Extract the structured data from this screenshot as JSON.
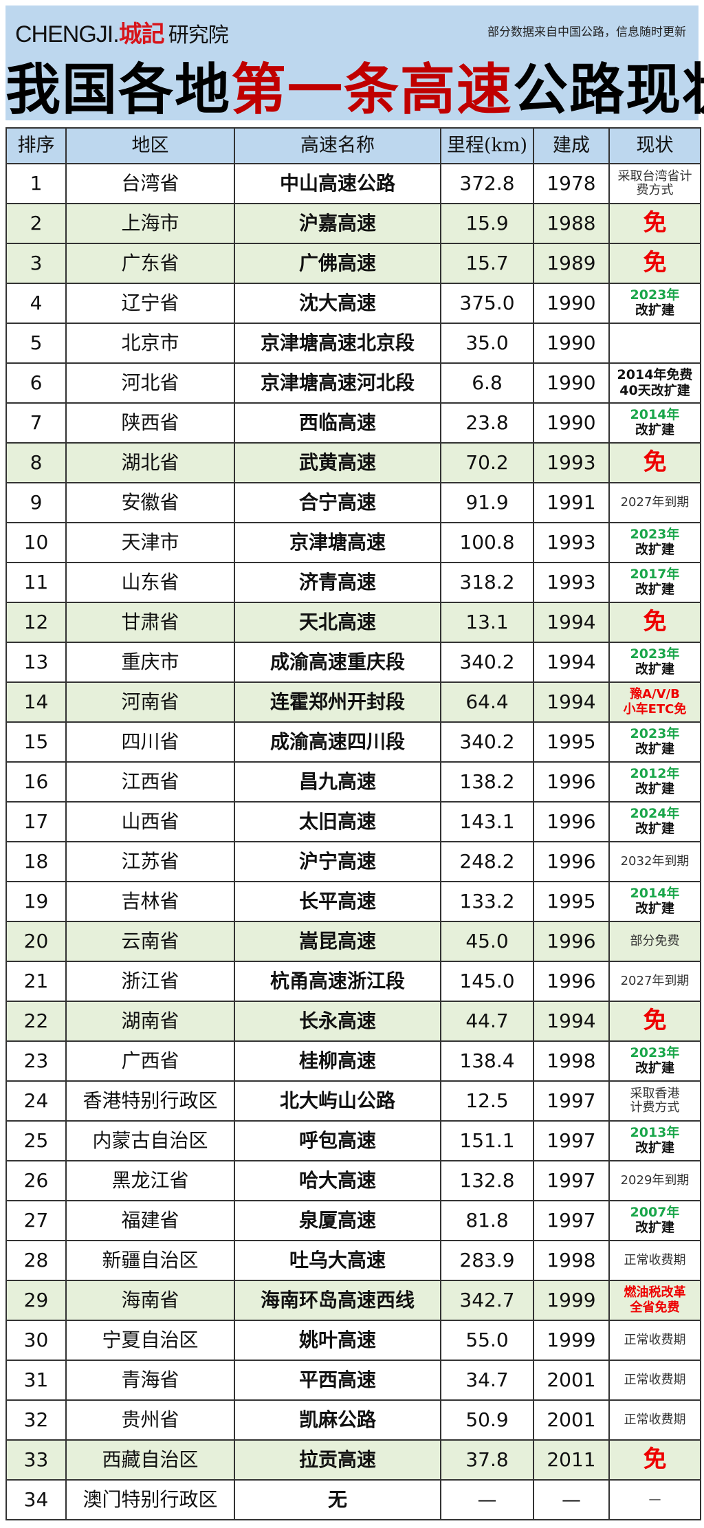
{
  "header": {
    "logo_latin": "CHENGJI.",
    "logo_cn": "城記",
    "logo_suffix": "研究院",
    "note": "部分数据来自中国公路，信息随时更新",
    "title_a": "我国各地",
    "title_b": "第一条高速",
    "title_c": "公路现状"
  },
  "columns": [
    "排序",
    "地区",
    "高速名称",
    "里程(km)",
    "建成",
    "现状"
  ],
  "colors": {
    "highlight_row": "#e6f0da",
    "header_bg": "#bdd7ee",
    "free": "#ee0000",
    "year_green": "#1aa64a"
  },
  "rows": [
    {
      "rank": "1",
      "region": "台湾省",
      "name": "中山高速公路",
      "km": "372.8",
      "year": "1978",
      "status": {
        "type": "plain",
        "lines": [
          "采取台湾省计",
          "费方式"
        ]
      }
    },
    {
      "rank": "2",
      "region": "上海市",
      "name": "沪嘉高速",
      "km": "15.9",
      "year": "1988",
      "hl": true,
      "status": {
        "type": "free",
        "lines": [
          "免"
        ]
      }
    },
    {
      "rank": "3",
      "region": "广东省",
      "name": "广佛高速",
      "km": "15.7",
      "year": "1989",
      "hl": true,
      "status": {
        "type": "free",
        "lines": [
          "免"
        ]
      }
    },
    {
      "rank": "4",
      "region": "辽宁省",
      "name": "沈大高速",
      "km": "375.0",
      "year": "1990",
      "status": {
        "type": "yr",
        "lines": [
          "2023年",
          "改扩建"
        ]
      }
    },
    {
      "rank": "5",
      "region": "北京市",
      "name": "京津塘高速北京段",
      "km": "35.0",
      "year": "1990",
      "status": {
        "type": "plain",
        "lines": []
      }
    },
    {
      "rank": "6",
      "region": "河北省",
      "name": "京津塘高速河北段",
      "km": "6.8",
      "year": "1990",
      "status": {
        "type": "bold",
        "lines": [
          "2014年免费",
          "40天改扩建"
        ]
      }
    },
    {
      "rank": "7",
      "region": "陕西省",
      "name": "西临高速",
      "km": "23.8",
      "year": "1990",
      "status": {
        "type": "yr",
        "lines": [
          "2014年",
          "改扩建"
        ]
      }
    },
    {
      "rank": "8",
      "region": "湖北省",
      "name": "武黄高速",
      "km": "70.2",
      "year": "1993",
      "hl": true,
      "status": {
        "type": "free",
        "lines": [
          "免"
        ]
      }
    },
    {
      "rank": "9",
      "region": "安徽省",
      "name": "合宁高速",
      "km": "91.9",
      "year": "1991",
      "status": {
        "type": "plain",
        "lines": [
          "2027年到期"
        ]
      }
    },
    {
      "rank": "10",
      "region": "天津市",
      "name": "京津塘高速",
      "km": "100.8",
      "year": "1993",
      "status": {
        "type": "yr",
        "lines": [
          "2023年",
          "改扩建"
        ]
      }
    },
    {
      "rank": "11",
      "region": "山东省",
      "name": "济青高速",
      "km": "318.2",
      "year": "1993",
      "status": {
        "type": "yr",
        "lines": [
          "2017年",
          "改扩建"
        ]
      }
    },
    {
      "rank": "12",
      "region": "甘肃省",
      "name": "天北高速",
      "km": "13.1",
      "year": "1994",
      "hl": true,
      "status": {
        "type": "free",
        "lines": [
          "免"
        ]
      }
    },
    {
      "rank": "13",
      "region": "重庆市",
      "name": "成渝高速重庆段",
      "km": "340.2",
      "year": "1994",
      "status": {
        "type": "yr",
        "lines": [
          "2023年",
          "改扩建"
        ]
      }
    },
    {
      "rank": "14",
      "region": "河南省",
      "name": "连霍郑州开封段",
      "km": "64.4",
      "year": "1994",
      "hl": true,
      "status": {
        "type": "red",
        "lines": [
          "豫A/V/B",
          "小车ETC免"
        ]
      }
    },
    {
      "rank": "15",
      "region": "四川省",
      "name": "成渝高速四川段",
      "km": "340.2",
      "year": "1995",
      "status": {
        "type": "yr",
        "lines": [
          "2023年",
          "改扩建"
        ]
      }
    },
    {
      "rank": "16",
      "region": "江西省",
      "name": "昌九高速",
      "km": "138.2",
      "year": "1996",
      "status": {
        "type": "yr",
        "lines": [
          "2012年",
          "改扩建"
        ]
      }
    },
    {
      "rank": "17",
      "region": "山西省",
      "name": "太旧高速",
      "km": "143.1",
      "year": "1996",
      "status": {
        "type": "yr",
        "lines": [
          "2024年",
          "改扩建"
        ]
      }
    },
    {
      "rank": "18",
      "region": "江苏省",
      "name": "沪宁高速",
      "km": "248.2",
      "year": "1996",
      "status": {
        "type": "plain",
        "lines": [
          "2032年到期"
        ]
      }
    },
    {
      "rank": "19",
      "region": "吉林省",
      "name": "长平高速",
      "km": "133.2",
      "year": "1995",
      "status": {
        "type": "yr",
        "lines": [
          "2014年",
          "改扩建"
        ]
      }
    },
    {
      "rank": "20",
      "region": "云南省",
      "name": "嵩昆高速",
      "km": "45.0",
      "year": "1996",
      "hl": true,
      "status": {
        "type": "plain",
        "lines": [
          "部分免费"
        ]
      }
    },
    {
      "rank": "21",
      "region": "浙江省",
      "name": "杭甬高速浙江段",
      "km": "145.0",
      "year": "1996",
      "status": {
        "type": "plain",
        "lines": [
          "2027年到期"
        ]
      }
    },
    {
      "rank": "22",
      "region": "湖南省",
      "name": "长永高速",
      "km": "44.7",
      "year": "1994",
      "hl": true,
      "status": {
        "type": "free",
        "lines": [
          "免"
        ]
      }
    },
    {
      "rank": "23",
      "region": "广西省",
      "name": "桂柳高速",
      "km": "138.4",
      "year": "1998",
      "status": {
        "type": "yr",
        "lines": [
          "2023年",
          "改扩建"
        ]
      }
    },
    {
      "rank": "24",
      "region": "香港特别行政区",
      "name": "北大屿山公路",
      "km": "12.5",
      "year": "1997",
      "status": {
        "type": "plain",
        "lines": [
          "采取香港",
          "计费方式"
        ]
      }
    },
    {
      "rank": "25",
      "region": "内蒙古自治区",
      "name": "呼包高速",
      "km": "151.1",
      "year": "1997",
      "status": {
        "type": "yr",
        "lines": [
          "2013年",
          "改扩建"
        ]
      }
    },
    {
      "rank": "26",
      "region": "黑龙江省",
      "name": "哈大高速",
      "km": "132.8",
      "year": "1997",
      "status": {
        "type": "plain",
        "lines": [
          "2029年到期"
        ]
      }
    },
    {
      "rank": "27",
      "region": "福建省",
      "name": "泉厦高速",
      "km": "81.8",
      "year": "1997",
      "status": {
        "type": "yr",
        "lines": [
          "2007年",
          "改扩建"
        ]
      }
    },
    {
      "rank": "28",
      "region": "新疆自治区",
      "name": "吐乌大高速",
      "km": "283.9",
      "year": "1998",
      "status": {
        "type": "plain",
        "lines": [
          "正常收费期"
        ]
      }
    },
    {
      "rank": "29",
      "region": "海南省",
      "name": "海南环岛高速西线",
      "km": "342.7",
      "year": "1999",
      "hl": true,
      "status": {
        "type": "red",
        "lines": [
          "燃油税改革",
          "全省免费"
        ]
      }
    },
    {
      "rank": "30",
      "region": "宁夏自治区",
      "name": "姚叶高速",
      "km": "55.0",
      "year": "1999",
      "status": {
        "type": "plain",
        "lines": [
          "正常收费期"
        ]
      }
    },
    {
      "rank": "31",
      "region": "青海省",
      "name": "平西高速",
      "km": "34.7",
      "year": "2001",
      "status": {
        "type": "plain",
        "lines": [
          "正常收费期"
        ]
      }
    },
    {
      "rank": "32",
      "region": "贵州省",
      "name": "凯麻公路",
      "km": "50.9",
      "year": "2001",
      "status": {
        "type": "plain",
        "lines": [
          "正常收费期"
        ]
      }
    },
    {
      "rank": "33",
      "region": "西藏自治区",
      "name": "拉贡高速",
      "km": "37.8",
      "year": "2011",
      "hl": true,
      "status": {
        "type": "free",
        "lines": [
          "免"
        ]
      }
    },
    {
      "rank": "34",
      "region": "澳门特别行政区",
      "name": "无",
      "km": "—",
      "year": "—",
      "status": {
        "type": "plain",
        "lines": [
          "—"
        ]
      }
    }
  ]
}
